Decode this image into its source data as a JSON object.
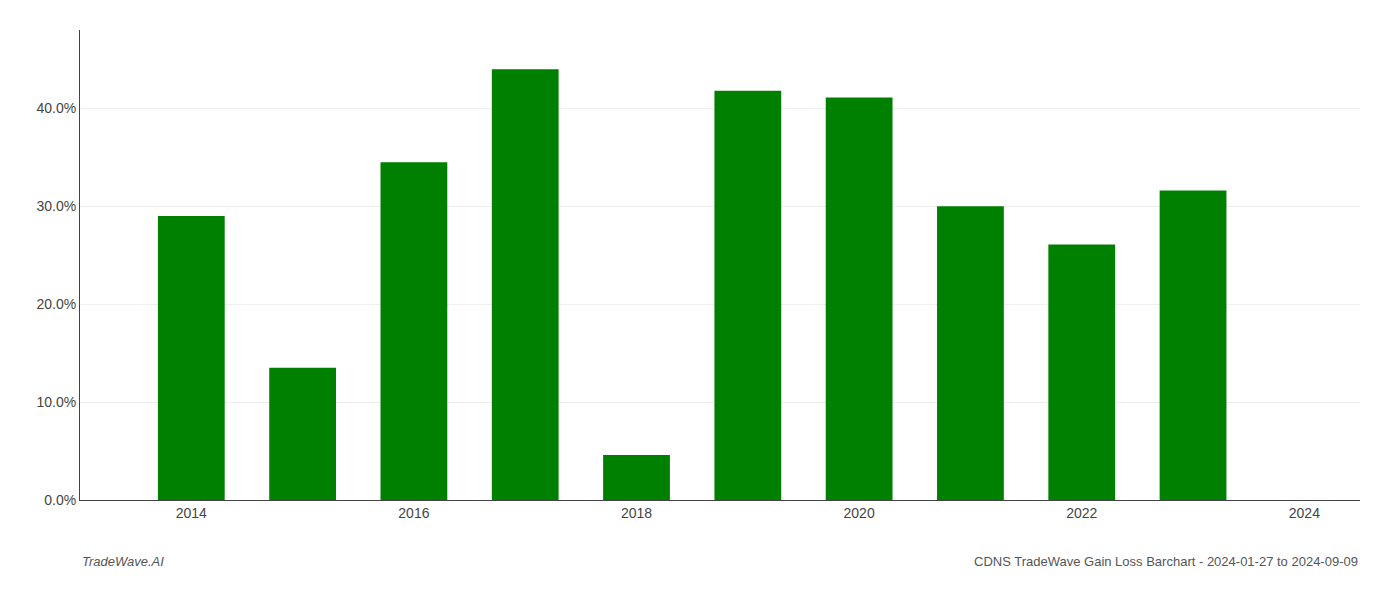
{
  "chart_data": {
    "type": "bar",
    "x": [
      2014,
      2015,
      2016,
      2017,
      2018,
      2019,
      2020,
      2021,
      2022,
      2023
    ],
    "values": [
      0.29,
      0.135,
      0.345,
      0.44,
      0.046,
      0.418,
      0.411,
      0.3,
      0.261,
      0.316
    ],
    "color": "#008000",
    "xlim": [
      2013.0,
      2024.5
    ],
    "xticks": [
      2014,
      2016,
      2018,
      2020,
      2022,
      2024
    ],
    "ylim": [
      0,
      0.48
    ],
    "yticks": [
      {
        "value": 0.0,
        "label": "0.0%"
      },
      {
        "value": 0.1,
        "label": "10.0%"
      },
      {
        "value": 0.2,
        "label": "20.0%"
      },
      {
        "value": 0.3,
        "label": "30.0%"
      },
      {
        "value": 0.4,
        "label": "40.0%"
      }
    ],
    "grid": true,
    "annotations": [
      "TradeWave.AI",
      "CDNS TradeWave Gain Loss Barchart - 2024-01-27 to 2024-09-09"
    ]
  }
}
